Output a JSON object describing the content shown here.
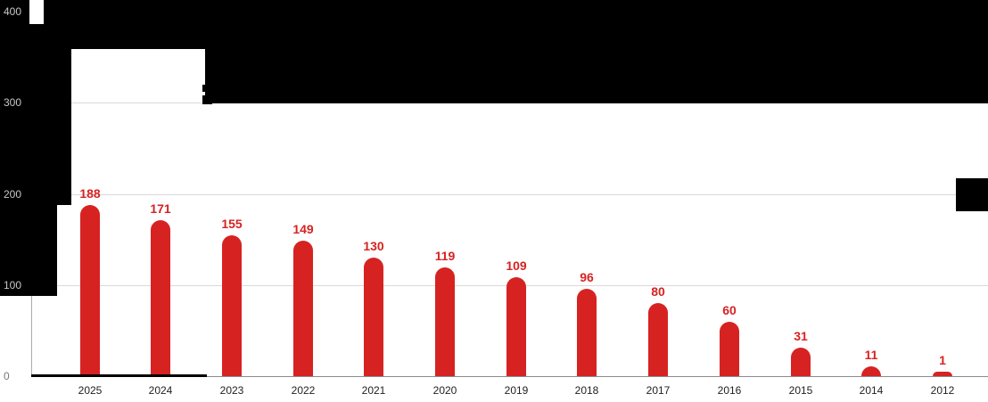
{
  "chart_data": {
    "type": "bar",
    "categories": [
      "2025",
      "2024",
      "2023",
      "2022",
      "2021",
      "2020",
      "2019",
      "2018",
      "2017",
      "2016",
      "2015",
      "2014",
      "2012"
    ],
    "values": [
      188,
      171,
      155,
      149,
      130,
      119,
      109,
      96,
      80,
      60,
      31,
      11,
      1
    ],
    "title": "",
    "xlabel": "",
    "ylabel": "",
    "ylim": [
      0,
      400
    ],
    "y_ticks": [
      0,
      100,
      200,
      300,
      400
    ],
    "grid": true,
    "legend_position": "none",
    "bar_color": "#d62322",
    "value_label_color": "#d62322",
    "tick_label_color_on_dark": "#c8c8c8",
    "tick_label_color_on_light": "#777777",
    "note": "Title and legend areas of the chart are blacked out (redacted) in the source screenshot"
  }
}
